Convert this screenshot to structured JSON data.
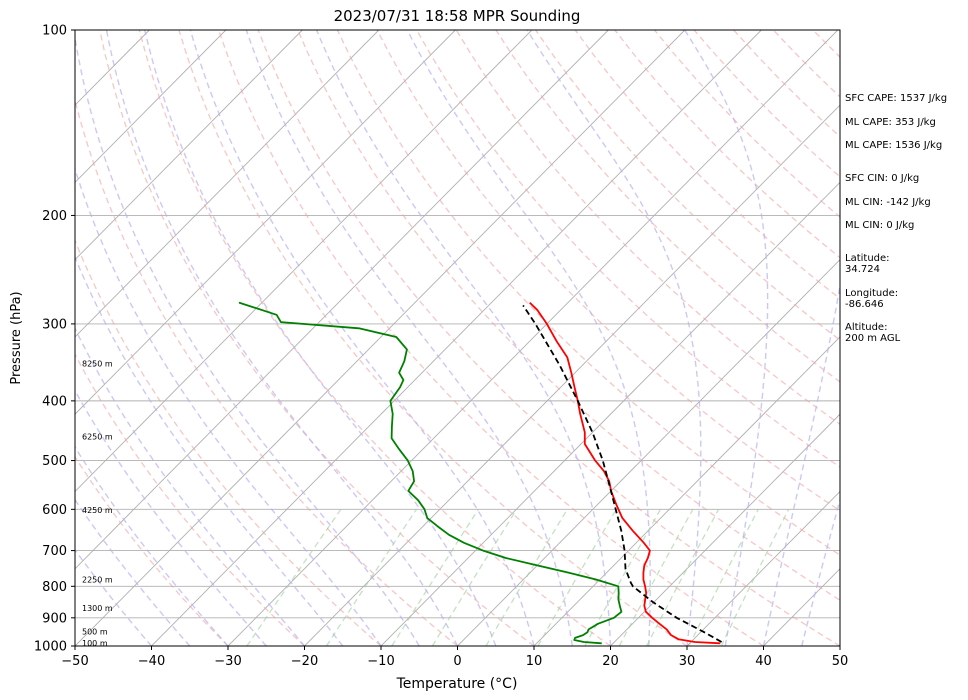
{
  "chart_data": {
    "type": "skew-t",
    "title": "2023/07/31 18:58 MPR Sounding",
    "xlabel": "Temperature (°C)",
    "ylabel": "Pressure (hPa)",
    "xlim": [
      -50,
      50
    ],
    "ylim": [
      1000,
      100
    ],
    "y_scale": "log",
    "grid": true,
    "x_ticks": [
      -50,
      -40,
      -30,
      -20,
      -10,
      0,
      10,
      20,
      30,
      40,
      50
    ],
    "x_tick_labels": [
      "−50",
      "−40",
      "−30",
      "−20",
      "−10",
      "0",
      "10",
      "20",
      "30",
      "40",
      "50"
    ],
    "y_ticks": [
      100,
      200,
      300,
      400,
      500,
      600,
      700,
      800,
      900,
      1000
    ],
    "y_tick_labels": [
      "100",
      "200",
      "300",
      "400",
      "500",
      "600",
      "700",
      "800",
      "900",
      "1000"
    ],
    "height_labels": [
      {
        "text": "100 m",
        "pressure": 988
      },
      {
        "text": "500 m",
        "pressure": 948
      },
      {
        "text": "1300 m",
        "pressure": 868
      },
      {
        "text": "2250 m",
        "pressure": 780
      },
      {
        "text": "4250 m",
        "pressure": 602
      },
      {
        "text": "6250 m",
        "pressure": 457
      },
      {
        "text": "8250 m",
        "pressure": 348
      }
    ],
    "series": [
      {
        "color": "#ff0000",
        "temperature_profile": [
          [
            990,
            34.0
          ],
          [
            985,
            30.5
          ],
          [
            975,
            28.0
          ],
          [
            960,
            26.5
          ],
          [
            940,
            25.2
          ],
          [
            920,
            23.5
          ],
          [
            900,
            21.8
          ],
          [
            880,
            20.2
          ],
          [
            860,
            19.2
          ],
          [
            840,
            18.5
          ],
          [
            820,
            17.8
          ],
          [
            800,
            16.8
          ],
          [
            780,
            15.7
          ],
          [
            760,
            14.8
          ],
          [
            740,
            14.0
          ],
          [
            720,
            13.5
          ],
          [
            700,
            12.8
          ],
          [
            680,
            11.0
          ],
          [
            650,
            8.0
          ],
          [
            620,
            5.0
          ],
          [
            590,
            2.5
          ],
          [
            560,
            0.0
          ],
          [
            540,
            -1.5
          ],
          [
            520,
            -3.5
          ],
          [
            500,
            -6.0
          ],
          [
            470,
            -9.5
          ],
          [
            450,
            -11.0
          ],
          [
            420,
            -14.0
          ],
          [
            400,
            -16.0
          ],
          [
            380,
            -18.2
          ],
          [
            360,
            -20.5
          ],
          [
            340,
            -23.0
          ],
          [
            320,
            -26.5
          ],
          [
            300,
            -30.0
          ],
          [
            285,
            -33.0
          ],
          [
            277,
            -35.0
          ]
        ]
      },
      {
        "color": "#008000",
        "dewpoint_profile": [
          [
            990,
            18.5
          ],
          [
            985,
            16.0
          ],
          [
            978,
            14.5
          ],
          [
            970,
            14.3
          ],
          [
            960,
            15.0
          ],
          [
            950,
            15.2
          ],
          [
            940,
            15.0
          ],
          [
            920,
            15.5
          ],
          [
            900,
            16.8
          ],
          [
            880,
            17.0
          ],
          [
            860,
            16.0
          ],
          [
            840,
            15.0
          ],
          [
            820,
            14.2
          ],
          [
            800,
            13.3
          ],
          [
            780,
            9.5
          ],
          [
            760,
            5.0
          ],
          [
            740,
            0.0
          ],
          [
            720,
            -5.0
          ],
          [
            700,
            -9.0
          ],
          [
            680,
            -12.5
          ],
          [
            660,
            -15.5
          ],
          [
            640,
            -18.0
          ],
          [
            620,
            -20.5
          ],
          [
            600,
            -22.0
          ],
          [
            580,
            -24.0
          ],
          [
            560,
            -26.5
          ],
          [
            540,
            -27.0
          ],
          [
            520,
            -28.5
          ],
          [
            500,
            -30.5
          ],
          [
            480,
            -33.0
          ],
          [
            460,
            -35.5
          ],
          [
            440,
            -37.0
          ],
          [
            420,
            -38.5
          ],
          [
            400,
            -40.5
          ],
          [
            380,
            -41.0
          ],
          [
            370,
            -41.5
          ],
          [
            360,
            -43.0
          ],
          [
            345,
            -43.8
          ],
          [
            330,
            -45.0
          ],
          [
            315,
            -48.0
          ],
          [
            305,
            -54.0
          ],
          [
            298,
            -65.0
          ],
          [
            290,
            -66.5
          ],
          [
            277,
            -73.0
          ]
        ]
      },
      {
        "color": "#000000",
        "style": "dashed",
        "parcel_profile": [
          [
            985,
            34.0
          ],
          [
            950,
            30.5
          ],
          [
            900,
            25.0
          ],
          [
            850,
            20.0
          ],
          [
            800,
            15.2
          ],
          [
            790,
            14.5
          ],
          [
            750,
            12.0
          ],
          [
            700,
            9.5
          ],
          [
            650,
            6.5
          ],
          [
            600,
            3.0
          ],
          [
            550,
            -0.8
          ],
          [
            500,
            -5.0
          ],
          [
            450,
            -10.0
          ],
          [
            400,
            -16.0
          ],
          [
            350,
            -23.0
          ],
          [
            300,
            -31.5
          ],
          [
            280,
            -35.5
          ]
        ]
      }
    ],
    "annotations": [
      {
        "text": "SFC CAPE: 1537 J/kg"
      },
      {
        "text": "ML CAPE: 353 J/kg"
      },
      {
        "text": "ML CAPE: 1536 J/kg"
      },
      {
        "text": "SFC CIN: 0 J/kg"
      },
      {
        "text": "ML CIN: -142 J/kg"
      },
      {
        "text": "ML CIN: 0 J/kg"
      },
      {
        "text": "Latitude:\n34.724"
      },
      {
        "text": "Longitude:\n-86.646"
      },
      {
        "text": "Altitude:\n200 m AGL"
      }
    ],
    "colors": {
      "temperature": "#ff0000",
      "dewpoint": "#008000",
      "parcel": "#000000",
      "isotherms": "#b0b0b0",
      "dry_adiabats": "#f4a0a0",
      "moist_adiabats": "#b7b0f2",
      "mixing_ratio": "#9bcf9b"
    }
  }
}
